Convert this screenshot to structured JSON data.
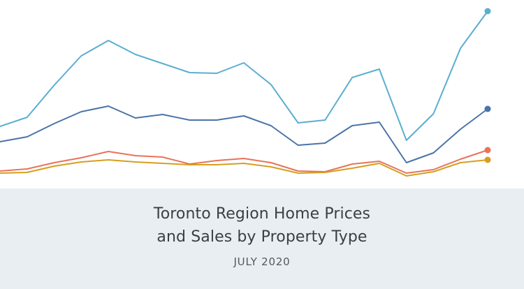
{
  "footer": {
    "title_line1": "Toronto Region Home Prices",
    "title_line2": "and Sales by Property Type",
    "subtitle": "JULY 2020"
  },
  "chart_data": {
    "type": "line",
    "title": "Toronto Region Home Prices and Sales by Property Type",
    "subtitle": "JULY 2020",
    "xlabel": "",
    "ylabel": "",
    "grid": false,
    "legend": "none",
    "x": [
      0,
      1,
      2,
      3,
      4,
      5,
      6,
      7,
      8,
      9,
      10,
      11,
      12,
      13,
      14,
      15,
      16,
      17,
      18
    ],
    "ylim": [
      0,
      270
    ],
    "series": [
      {
        "color": "#5aaed0",
        "end_marker": true,
        "values": [
          89,
          102,
          148,
          190,
          212,
          192,
          179,
          166,
          165,
          180,
          149,
          94,
          98,
          159,
          171,
          69,
          107,
          201,
          254
        ]
      },
      {
        "color": "#4a74a8",
        "end_marker": true,
        "values": [
          67,
          74,
          93,
          110,
          118,
          101,
          106,
          98,
          98,
          104,
          90,
          62,
          65,
          90,
          95,
          37,
          51,
          85,
          114
        ]
      },
      {
        "color": "#e8735a",
        "end_marker": true,
        "values": [
          25,
          28,
          37,
          44,
          53,
          47,
          45,
          35,
          40,
          43,
          37,
          25,
          24,
          35,
          39,
          22,
          27,
          42,
          55
        ]
      },
      {
        "color": "#d79e1e",
        "end_marker": true,
        "values": [
          22,
          23,
          32,
          38,
          41,
          38,
          36,
          34,
          34,
          36,
          31,
          22,
          23,
          29,
          36,
          18,
          24,
          37,
          41
        ]
      }
    ]
  }
}
